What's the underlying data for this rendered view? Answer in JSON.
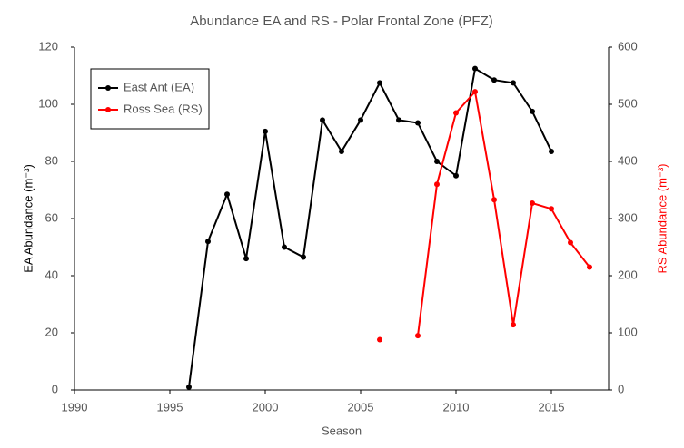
{
  "chart_data": {
    "type": "line",
    "title": "Abundance EA and RS - Polar Frontal Zone (PFZ)",
    "x_label": "Season",
    "y_label": "EA Abundance (m⁻³)",
    "y2_label": "RS Abundance (m⁻³)",
    "xlim": [
      1990,
      2018
    ],
    "xticks": [
      1990,
      1995,
      2000,
      2005,
      2010,
      2015
    ],
    "ylim": [
      0,
      120
    ],
    "yticks": [
      0,
      20,
      40,
      60,
      80,
      100,
      120
    ],
    "y2lim": [
      0,
      600
    ],
    "y2ticks": [
      0,
      100,
      200,
      300,
      400,
      500,
      600
    ],
    "grid": false,
    "legend": "upper left",
    "series": [
      {
        "name": "East Ant (EA)",
        "color": "#000000",
        "x": [
          1996,
          1997,
          1998,
          1999,
          2000,
          2001,
          2002,
          2003,
          2004,
          2005,
          2006,
          2007,
          2008,
          2009,
          2010,
          2011,
          2012,
          2013,
          2014,
          2015
        ],
        "values": [
          1,
          52,
          68.5,
          46,
          90.5,
          50,
          46.5,
          94.5,
          83.5,
          94.5,
          107.5,
          94.5,
          93.5,
          80,
          75,
          112.5,
          108.5,
          107.5,
          97.5,
          83.5
        ]
      },
      {
        "name": "Ross Sea (RS)",
        "color": "#ff0000",
        "axis": "y2",
        "x": [
          2006,
          2007,
          2008,
          2009,
          2010,
          2011,
          2012,
          2013,
          2014,
          2015,
          2016,
          2017
        ],
        "values": [
          88,
          null,
          95,
          360,
          485,
          522,
          333,
          114,
          327,
          317,
          258,
          215
        ]
      }
    ]
  }
}
